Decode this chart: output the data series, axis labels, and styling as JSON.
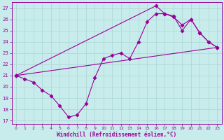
{
  "title": "",
  "xlabel": "Windchill (Refroidissement éolien,°C)",
  "ylabel": "",
  "bg_color": "#c8ecec",
  "grid_color": "#b0d8d8",
  "line_color": "#990099",
  "xlim": [
    -0.5,
    23.5
  ],
  "ylim": [
    16.7,
    27.5
  ],
  "xticks": [
    0,
    1,
    2,
    3,
    4,
    5,
    6,
    7,
    8,
    9,
    10,
    11,
    12,
    13,
    14,
    15,
    16,
    17,
    18,
    19,
    20,
    21,
    22,
    23
  ],
  "yticks": [
    17,
    18,
    19,
    20,
    21,
    22,
    23,
    24,
    25,
    26,
    27
  ],
  "curve1_x": [
    0,
    1,
    2,
    3,
    4,
    5,
    6,
    7,
    8,
    9,
    10,
    11,
    12,
    13,
    14,
    15,
    16,
    17,
    18,
    19,
    20,
    21,
    22,
    23
  ],
  "curve1_y": [
    21.0,
    20.7,
    20.4,
    19.7,
    19.2,
    18.3,
    17.3,
    17.5,
    18.5,
    20.8,
    22.5,
    22.8,
    23.0,
    22.5,
    24.0,
    25.8,
    26.5,
    26.5,
    26.3,
    25.0,
    26.0,
    24.8,
    24.0,
    23.5
  ],
  "curve2_x": [
    0,
    23
  ],
  "curve2_y": [
    21.0,
    23.5
  ],
  "curve3_x": [
    0,
    16,
    17,
    18,
    19,
    20,
    21,
    22,
    23
  ],
  "curve3_y": [
    21.0,
    27.2,
    26.5,
    26.2,
    25.5,
    26.0,
    24.8,
    24.0,
    23.5
  ]
}
